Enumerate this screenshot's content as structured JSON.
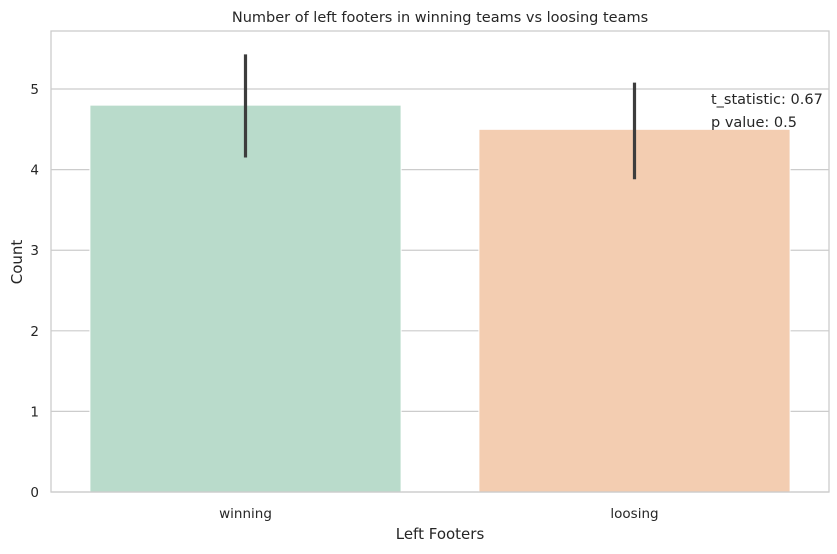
{
  "chart_data": {
    "type": "bar",
    "title": "Number of left footers in winning teams vs loosing teams",
    "xlabel": "Left Footers",
    "ylabel": "Count",
    "categories": [
      "winning",
      "loosing"
    ],
    "values": [
      4.8,
      4.5
    ],
    "error_bars": [
      [
        4.15,
        5.43
      ],
      [
        3.88,
        5.08
      ]
    ],
    "colors": [
      "#b9dbcb",
      "#f3cdb1"
    ],
    "ylim": [
      0,
      5.72
    ],
    "yticks": [
      "0",
      "1",
      "2",
      "3",
      "4",
      "5"
    ],
    "grid": "horizontal",
    "annotations": [
      "t_statistic: 0.67",
      "p value: 0.5"
    ]
  }
}
